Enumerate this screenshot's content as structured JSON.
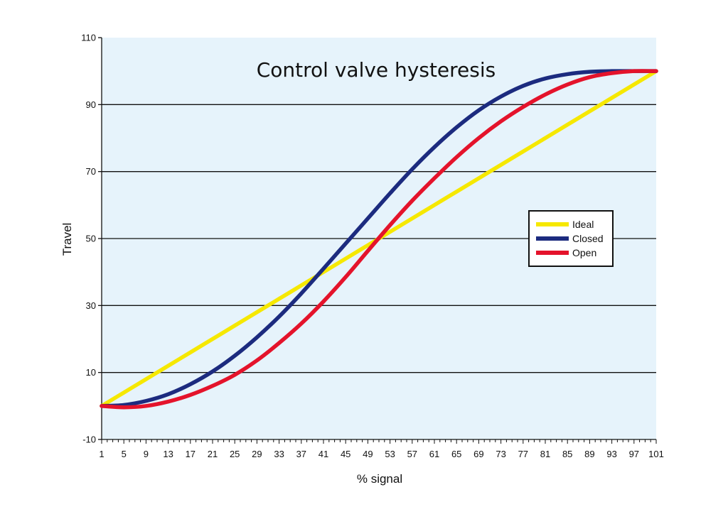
{
  "chart_data": {
    "type": "line",
    "title": "Control valve hysteresis",
    "xlabel": "% signal",
    "ylabel": "Travel",
    "xlim": [
      1,
      101
    ],
    "ylim": [
      -10,
      110
    ],
    "x_ticks": [
      1,
      5,
      9,
      13,
      17,
      21,
      25,
      29,
      33,
      37,
      41,
      45,
      49,
      53,
      57,
      61,
      65,
      69,
      73,
      77,
      81,
      85,
      89,
      93,
      97,
      101
    ],
    "y_ticks": [
      -10,
      10,
      30,
      50,
      70,
      90,
      110
    ],
    "grid": "horizontal",
    "background_color": "#e6f3fb",
    "legend_position": "right",
    "x": [
      1,
      5,
      9,
      13,
      17,
      21,
      25,
      29,
      33,
      37,
      41,
      45,
      49,
      53,
      57,
      61,
      65,
      69,
      73,
      77,
      81,
      85,
      89,
      93,
      97,
      101
    ],
    "series": [
      {
        "name": "Ideal",
        "color": "#f6e800",
        "values": [
          0,
          4,
          8,
          12,
          16,
          20,
          24,
          28,
          32,
          36,
          40,
          44,
          48,
          52,
          56,
          60,
          64,
          68,
          72,
          76,
          80,
          84,
          88,
          92,
          96,
          100
        ]
      },
      {
        "name": "Closed",
        "color": "#1c2b7f",
        "values": [
          0,
          0.3,
          1.5,
          3.5,
          6.5,
          10.3,
          15,
          20.5,
          26.7,
          33.6,
          41,
          48.5,
          56,
          63.5,
          70.7,
          77.3,
          83.2,
          88.3,
          92.4,
          95.6,
          97.8,
          99.1,
          99.8,
          100,
          100,
          100
        ]
      },
      {
        "name": "Open",
        "color": "#e4132b",
        "values": [
          0,
          -0.4,
          0,
          1.3,
          3.3,
          6,
          9.3,
          13.6,
          18.8,
          24.6,
          31.2,
          38.5,
          46.3,
          54,
          61.3,
          68,
          74.3,
          80,
          85,
          89.3,
          93,
          96,
          98.2,
          99.4,
          100,
          100
        ]
      }
    ]
  }
}
